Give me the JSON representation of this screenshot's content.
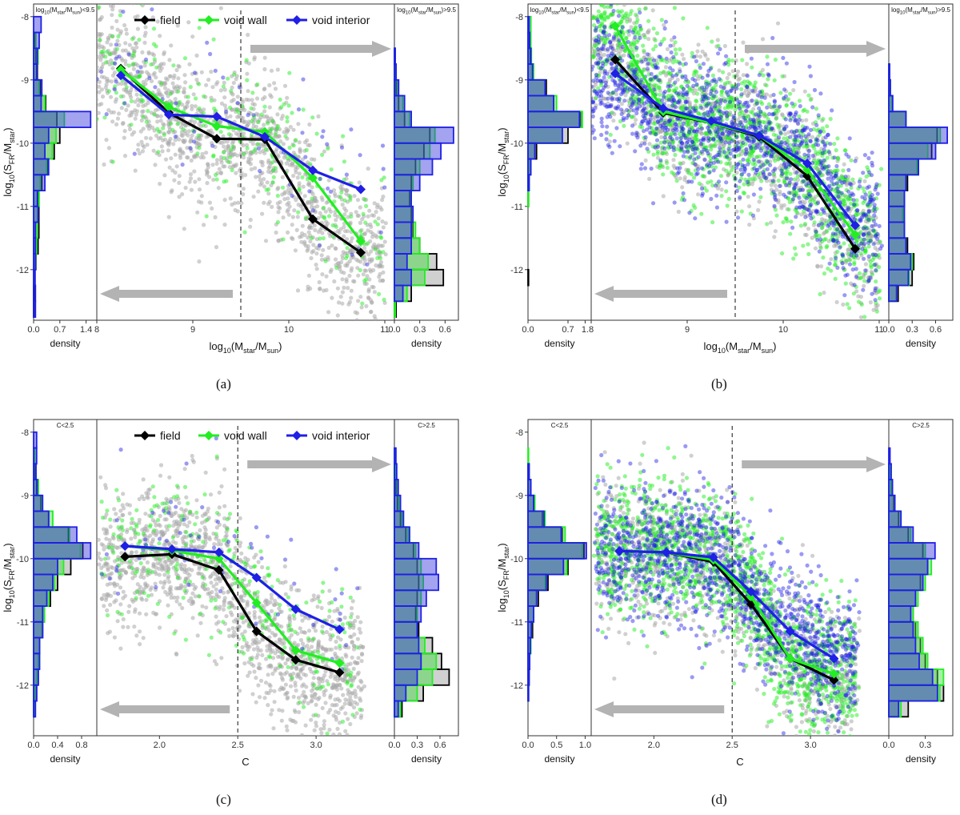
{
  "colors": {
    "field": "#000000",
    "void_wall": "#22ee22",
    "void_interior": "#1f1fe6",
    "scatter_field": "#a9a9a9",
    "arrow": "#b3b3b3"
  },
  "legend_labels": [
    "field",
    "void wall",
    "void interior"
  ],
  "chart_data": [
    {
      "type": "scatter",
      "caption": "(a)",
      "xlabel": "log10(Mstar/Msun)",
      "ylabel": "log10(SFR/Mstar)",
      "xlim": [
        8,
        11.1
      ],
      "ylim": [
        -12.8,
        -7.8
      ],
      "xticks": [
        "8",
        "9",
        "10",
        "11"
      ],
      "yticks": [
        "-8",
        "-9",
        "-10",
        "-11",
        "-12"
      ],
      "split_x": 9.5,
      "legend": true,
      "series": [
        {
          "name": "field",
          "x": [
            8.25,
            8.75,
            9.25,
            9.75,
            10.25,
            10.75
          ],
          "y": [
            -8.82,
            -9.52,
            -9.93,
            -9.94,
            -11.2,
            -11.73
          ]
        },
        {
          "name": "void wall",
          "x": [
            8.25,
            8.75,
            9.25,
            9.75,
            10.25,
            10.75
          ],
          "y": [
            -8.84,
            -9.43,
            -9.73,
            -9.82,
            -10.55,
            -11.55
          ]
        },
        {
          "name": "void interior",
          "x": [
            8.25,
            8.75,
            9.25,
            9.75,
            10.25,
            10.75
          ],
          "y": [
            -8.93,
            -9.55,
            -9.58,
            -9.9,
            -10.43,
            -10.73
          ]
        }
      ],
      "left_hist": {
        "title": "log10(Mstar/Msun)<9.5",
        "xlabel": "density",
        "xticks": [
          "0.0",
          "0.7",
          "1.4"
        ],
        "xmax": 1.6,
        "bins": [
          -8.0,
          -8.25,
          -8.5,
          -8.75,
          -9.0,
          -9.25,
          -9.5,
          -9.75,
          -10.0,
          -10.25,
          -10.5,
          -10.75,
          -11.0,
          -11.25,
          -11.5,
          -11.75,
          -12.0,
          -12.25,
          -12.5,
          -12.75
        ],
        "field": [
          0.0,
          0.03,
          0.06,
          0.1,
          0.18,
          0.32,
          0.62,
          0.7,
          0.55,
          0.38,
          0.22,
          0.12,
          0.14,
          0.14,
          0.12,
          0.06,
          0.03,
          0.02,
          0.01,
          0.0
        ],
        "void_wall": [
          0.0,
          0.06,
          0.12,
          0.08,
          0.15,
          0.3,
          0.82,
          0.6,
          0.5,
          0.35,
          0.18,
          0.15,
          0.12,
          0.1,
          0.08,
          0.05,
          0.02,
          0.0,
          0.0,
          0.0
        ],
        "void_interior": [
          0.2,
          0.15,
          0.1,
          0.08,
          0.22,
          0.2,
          1.52,
          0.4,
          0.3,
          0.4,
          0.3,
          0.1,
          0.12,
          0.05,
          0.05,
          0.05,
          0.04,
          0.05,
          0.05,
          0.0
        ]
      },
      "right_hist": {
        "title": "log10(Mstar/Msun)>9.5",
        "xlabel": "density",
        "xticks": [
          "0.0",
          "0.3",
          "0.6"
        ],
        "xmax": 0.72,
        "bins": [
          -8.0,
          -8.25,
          -8.5,
          -8.75,
          -9.0,
          -9.25,
          -9.5,
          -9.75,
          -10.0,
          -10.25,
          -10.5,
          -10.75,
          -11.0,
          -11.25,
          -11.5,
          -11.75,
          -12.0,
          -12.25,
          -12.5,
          -12.75
        ],
        "field": [
          0.0,
          0.0,
          0.01,
          0.01,
          0.02,
          0.05,
          0.12,
          0.42,
          0.35,
          0.25,
          0.2,
          0.18,
          0.2,
          0.22,
          0.3,
          0.5,
          0.58,
          0.2,
          0.02,
          0.0
        ],
        "void_wall": [
          0.0,
          0.0,
          0.01,
          0.02,
          0.04,
          0.1,
          0.18,
          0.48,
          0.42,
          0.3,
          0.22,
          0.2,
          0.22,
          0.25,
          0.3,
          0.4,
          0.36,
          0.15,
          0.01,
          0.0
        ],
        "void_interior": [
          0.0,
          0.0,
          0.01,
          0.02,
          0.05,
          0.12,
          0.2,
          0.7,
          0.55,
          0.45,
          0.3,
          0.2,
          0.22,
          0.2,
          0.2,
          0.15,
          0.2,
          0.1,
          0.0,
          0.0
        ]
      }
    },
    {
      "type": "scatter",
      "caption": "(b)",
      "xlabel": "log10(Mstar/Msun)",
      "ylabel": "log10(SFR/Mstar)",
      "xlim": [
        8,
        11.1
      ],
      "ylim": [
        -12.8,
        -7.8
      ],
      "xticks": [
        "8",
        "9",
        "10",
        "11"
      ],
      "yticks": [
        "-8",
        "-9",
        "-10",
        "-11",
        "-12"
      ],
      "split_x": 9.5,
      "legend": false,
      "series": [
        {
          "name": "field",
          "x": [
            8.25,
            8.75,
            9.25,
            9.75,
            10.25,
            10.75
          ],
          "y": [
            -8.68,
            -9.52,
            -9.68,
            -9.9,
            -10.52,
            -11.67
          ]
        },
        {
          "name": "void wall",
          "x": [
            8.25,
            8.75,
            9.25,
            9.75,
            10.25,
            10.75
          ],
          "y": [
            -8.15,
            -9.5,
            -9.68,
            -9.88,
            -10.42,
            -11.45
          ]
        },
        {
          "name": "void interior",
          "x": [
            8.25,
            8.75,
            9.25,
            9.75,
            10.25,
            10.75
          ],
          "y": [
            -8.9,
            -9.45,
            -9.65,
            -9.88,
            -10.32,
            -11.3
          ]
        }
      ],
      "left_hist": {
        "title": "log10(Mstar/Msun)<9.5",
        "xlabel": "density",
        "xticks": [
          "0.0",
          "0.7",
          "1."
        ],
        "xmax": 1.05,
        "bins": [
          -8.0,
          -8.25,
          -8.5,
          -8.75,
          -9.0,
          -9.25,
          -9.5,
          -9.75,
          -10.0,
          -10.25,
          -10.5,
          -10.75,
          -11.0,
          -11.25,
          -11.5,
          -11.75,
          -12.0,
          -12.25,
          -12.5,
          -12.75
        ],
        "field": [
          0.0,
          0.02,
          0.04,
          0.1,
          0.32,
          0.45,
          0.92,
          0.7,
          0.15,
          0.05,
          0.02,
          0.01,
          0.0,
          0.0,
          0.0,
          0.0,
          0.01,
          0.0,
          0.0,
          0.0
        ],
        "void_wall": [
          0.05,
          0.05,
          0.06,
          0.1,
          0.3,
          0.5,
          0.95,
          0.6,
          0.12,
          0.04,
          0.02,
          0.01,
          0.0,
          0.0,
          0.0,
          0.0,
          0.0,
          0.0,
          0.0,
          0.0
        ],
        "void_interior": [
          0.02,
          0.03,
          0.05,
          0.08,
          0.3,
          0.45,
          0.9,
          0.6,
          0.12,
          0.05,
          0.02,
          0.0,
          0.0,
          0.0,
          0.0,
          0.0,
          0.0,
          0.0,
          0.0,
          0.0
        ]
      },
      "right_hist": {
        "title": "log10(Mstar/Msun)>9.5",
        "xlabel": "density",
        "xticks": [
          "0.0",
          "0.3",
          "0.6"
        ],
        "xmax": 0.78,
        "bins": [
          -8.0,
          -8.25,
          -8.5,
          -8.75,
          -9.0,
          -9.25,
          -9.5,
          -9.75,
          -10.0,
          -10.25,
          -10.5,
          -10.75,
          -11.0,
          -11.25,
          -11.5,
          -11.75,
          -12.0,
          -12.25,
          -12.5,
          -12.75
        ],
        "field": [
          0.0,
          0.0,
          0.0,
          0.01,
          0.02,
          0.04,
          0.22,
          0.62,
          0.55,
          0.38,
          0.24,
          0.2,
          0.18,
          0.2,
          0.24,
          0.32,
          0.3,
          0.12,
          0.0,
          0.0
        ],
        "void_wall": [
          0.0,
          0.0,
          0.0,
          0.01,
          0.02,
          0.04,
          0.22,
          0.66,
          0.5,
          0.36,
          0.22,
          0.2,
          0.18,
          0.2,
          0.22,
          0.3,
          0.26,
          0.1,
          0.0,
          0.0
        ],
        "void_interior": [
          0.0,
          0.0,
          0.0,
          0.01,
          0.02,
          0.05,
          0.22,
          0.75,
          0.6,
          0.38,
          0.22,
          0.2,
          0.2,
          0.2,
          0.22,
          0.28,
          0.25,
          0.1,
          0.0,
          0.0
        ]
      }
    },
    {
      "type": "scatter",
      "caption": "(c)",
      "xlabel": "C",
      "ylabel": "log10(SFR/Mstar)",
      "xlim": [
        1.6,
        3.5
      ],
      "ylim": [
        -12.8,
        -7.8
      ],
      "xticks": [
        "2.0",
        "2.5",
        "3.0"
      ],
      "yticks": [
        "-8",
        "-9",
        "-10",
        "-11",
        "-12"
      ],
      "split_x": 2.5,
      "legend": true,
      "series": [
        {
          "name": "field",
          "x": [
            1.78,
            2.08,
            2.38,
            2.62,
            2.87,
            3.15
          ],
          "y": [
            -9.97,
            -9.93,
            -10.18,
            -11.15,
            -11.6,
            -11.8
          ]
        },
        {
          "name": "void wall",
          "x": [
            1.78,
            2.08,
            2.38,
            2.62,
            2.87,
            3.15
          ],
          "y": [
            -9.8,
            -9.87,
            -10.0,
            -10.7,
            -11.45,
            -11.65
          ]
        },
        {
          "name": "void interior",
          "x": [
            1.78,
            2.08,
            2.38,
            2.62,
            2.87,
            3.15
          ],
          "y": [
            -9.8,
            -9.85,
            -9.9,
            -10.3,
            -10.8,
            -11.12
          ]
        }
      ],
      "left_hist": {
        "title": "C<2.5",
        "xlabel": "density",
        "xticks": [
          "0.0",
          "0.4",
          "0.8"
        ],
        "xmax": 1.0,
        "bins": [
          -8.0,
          -8.25,
          -8.5,
          -8.75,
          -9.0,
          -9.25,
          -9.5,
          -9.75,
          -10.0,
          -10.25,
          -10.5,
          -10.75,
          -11.0,
          -11.25,
          -11.5,
          -11.75,
          -12.0,
          -12.25,
          -12.5,
          -12.75
        ],
        "field": [
          0.0,
          0.0,
          0.02,
          0.05,
          0.12,
          0.25,
          0.58,
          0.82,
          0.62,
          0.4,
          0.28,
          0.18,
          0.15,
          0.1,
          0.08,
          0.06,
          0.05,
          0.02,
          0.0,
          0.0
        ],
        "void_wall": [
          0.0,
          0.02,
          0.04,
          0.08,
          0.14,
          0.32,
          0.6,
          0.78,
          0.5,
          0.35,
          0.25,
          0.18,
          0.14,
          0.1,
          0.08,
          0.06,
          0.03,
          0.01,
          0.0,
          0.0
        ],
        "void_interior": [
          0.05,
          0.05,
          0.04,
          0.06,
          0.15,
          0.25,
          0.72,
          0.95,
          0.4,
          0.32,
          0.22,
          0.15,
          0.15,
          0.1,
          0.1,
          0.08,
          0.05,
          0.03,
          0.0,
          0.0
        ]
      },
      "right_hist": {
        "title": "C>2.5",
        "xlabel": "density",
        "xticks": [
          "0.0",
          "0.3",
          "0.6"
        ],
        "xmax": 0.8,
        "bins": [
          -8.0,
          -8.25,
          -8.5,
          -8.75,
          -9.0,
          -9.25,
          -9.5,
          -9.75,
          -10.0,
          -10.25,
          -10.5,
          -10.75,
          -11.0,
          -11.25,
          -11.5,
          -11.75,
          -12.0,
          -12.25,
          -12.5,
          -12.75
        ],
        "field": [
          0.0,
          0.0,
          0.01,
          0.02,
          0.04,
          0.08,
          0.15,
          0.25,
          0.3,
          0.32,
          0.3,
          0.28,
          0.32,
          0.5,
          0.62,
          0.72,
          0.38,
          0.1,
          0.0,
          0.0
        ],
        "void_wall": [
          0.0,
          0.01,
          0.02,
          0.04,
          0.06,
          0.1,
          0.18,
          0.28,
          0.35,
          0.38,
          0.35,
          0.3,
          0.3,
          0.4,
          0.55,
          0.5,
          0.3,
          0.08,
          0.0,
          0.0
        ],
        "void_interior": [
          0.0,
          0.02,
          0.03,
          0.05,
          0.08,
          0.12,
          0.2,
          0.32,
          0.55,
          0.58,
          0.42,
          0.35,
          0.3,
          0.32,
          0.35,
          0.3,
          0.15,
          0.05,
          0.0,
          0.0
        ]
      }
    },
    {
      "type": "scatter",
      "caption": "(d)",
      "xlabel": "C",
      "ylabel": "log10(SFR/Mstar)",
      "xlim": [
        1.6,
        3.5
      ],
      "ylim": [
        -12.8,
        -7.8
      ],
      "xticks": [
        "2.0",
        "2.5",
        "3.0"
      ],
      "yticks": [
        "-8",
        "-9",
        "-10",
        "-11",
        "-12"
      ],
      "split_x": 2.5,
      "legend": false,
      "series": [
        {
          "name": "field",
          "x": [
            1.78,
            2.08,
            2.38,
            2.62,
            2.87,
            3.15
          ],
          "y": [
            -9.88,
            -9.9,
            -10.05,
            -10.72,
            -11.58,
            -11.92
          ]
        },
        {
          "name": "void wall",
          "x": [
            1.78,
            2.08,
            2.38,
            2.62,
            2.87,
            3.15
          ],
          "y": [
            -9.88,
            -9.9,
            -10.02,
            -10.6,
            -11.58,
            -11.82
          ]
        },
        {
          "name": "void interior",
          "x": [
            1.78,
            2.08,
            2.38,
            2.62,
            2.87,
            3.15
          ],
          "y": [
            -9.88,
            -9.9,
            -9.98,
            -10.52,
            -11.15,
            -11.58
          ]
        }
      ],
      "left_hist": {
        "title": "C<2.5",
        "xlabel": "density",
        "xticks": [
          "0.0",
          "0.5",
          "1.0"
        ],
        "xmax": 1.05,
        "bins": [
          -8.0,
          -8.25,
          -8.5,
          -8.75,
          -9.0,
          -9.25,
          -9.5,
          -9.75,
          -10.0,
          -10.25,
          -10.5,
          -10.75,
          -11.0,
          -11.25,
          -11.5,
          -11.75,
          -12.0,
          -12.25,
          -12.5,
          -12.75
        ],
        "field": [
          0.0,
          0.0,
          0.02,
          0.05,
          0.1,
          0.25,
          0.6,
          0.98,
          0.7,
          0.35,
          0.18,
          0.1,
          0.08,
          0.05,
          0.03,
          0.02,
          0.01,
          0.0,
          0.0,
          0.0
        ],
        "void_wall": [
          0.0,
          0.01,
          0.02,
          0.05,
          0.12,
          0.3,
          0.65,
          0.95,
          0.68,
          0.3,
          0.15,
          0.1,
          0.06,
          0.05,
          0.03,
          0.02,
          0.01,
          0.0,
          0.0,
          0.0
        ],
        "void_interior": [
          0.0,
          0.0,
          0.02,
          0.05,
          0.1,
          0.28,
          0.58,
          1.02,
          0.62,
          0.32,
          0.15,
          0.1,
          0.06,
          0.04,
          0.03,
          0.02,
          0.01,
          0.0,
          0.0,
          0.0
        ]
      },
      "right_hist": {
        "title": "C>2.5",
        "xlabel": "density",
        "xticks": [
          "0.0",
          "0.3"
        ],
        "xmax": 0.5,
        "bins": [
          -8.0,
          -8.25,
          -8.5,
          -8.75,
          -9.0,
          -9.25,
          -9.5,
          -9.75,
          -10.0,
          -10.25,
          -10.5,
          -10.75,
          -11.0,
          -11.25,
          -11.5,
          -11.75,
          -12.0,
          -12.25,
          -12.5,
          -12.75
        ],
        "field": [
          0.0,
          0.0,
          0.01,
          0.02,
          0.04,
          0.08,
          0.16,
          0.28,
          0.32,
          0.26,
          0.22,
          0.2,
          0.22,
          0.26,
          0.3,
          0.4,
          0.45,
          0.16,
          0.0,
          0.0
        ],
        "void_wall": [
          0.0,
          0.0,
          0.01,
          0.02,
          0.05,
          0.1,
          0.18,
          0.3,
          0.35,
          0.3,
          0.24,
          0.2,
          0.24,
          0.28,
          0.32,
          0.45,
          0.42,
          0.1,
          0.0,
          0.0
        ],
        "void_interior": [
          0.0,
          0.01,
          0.02,
          0.03,
          0.05,
          0.1,
          0.2,
          0.38,
          0.32,
          0.28,
          0.22,
          0.18,
          0.2,
          0.22,
          0.25,
          0.36,
          0.4,
          0.08,
          0.0,
          0.0
        ]
      }
    }
  ]
}
